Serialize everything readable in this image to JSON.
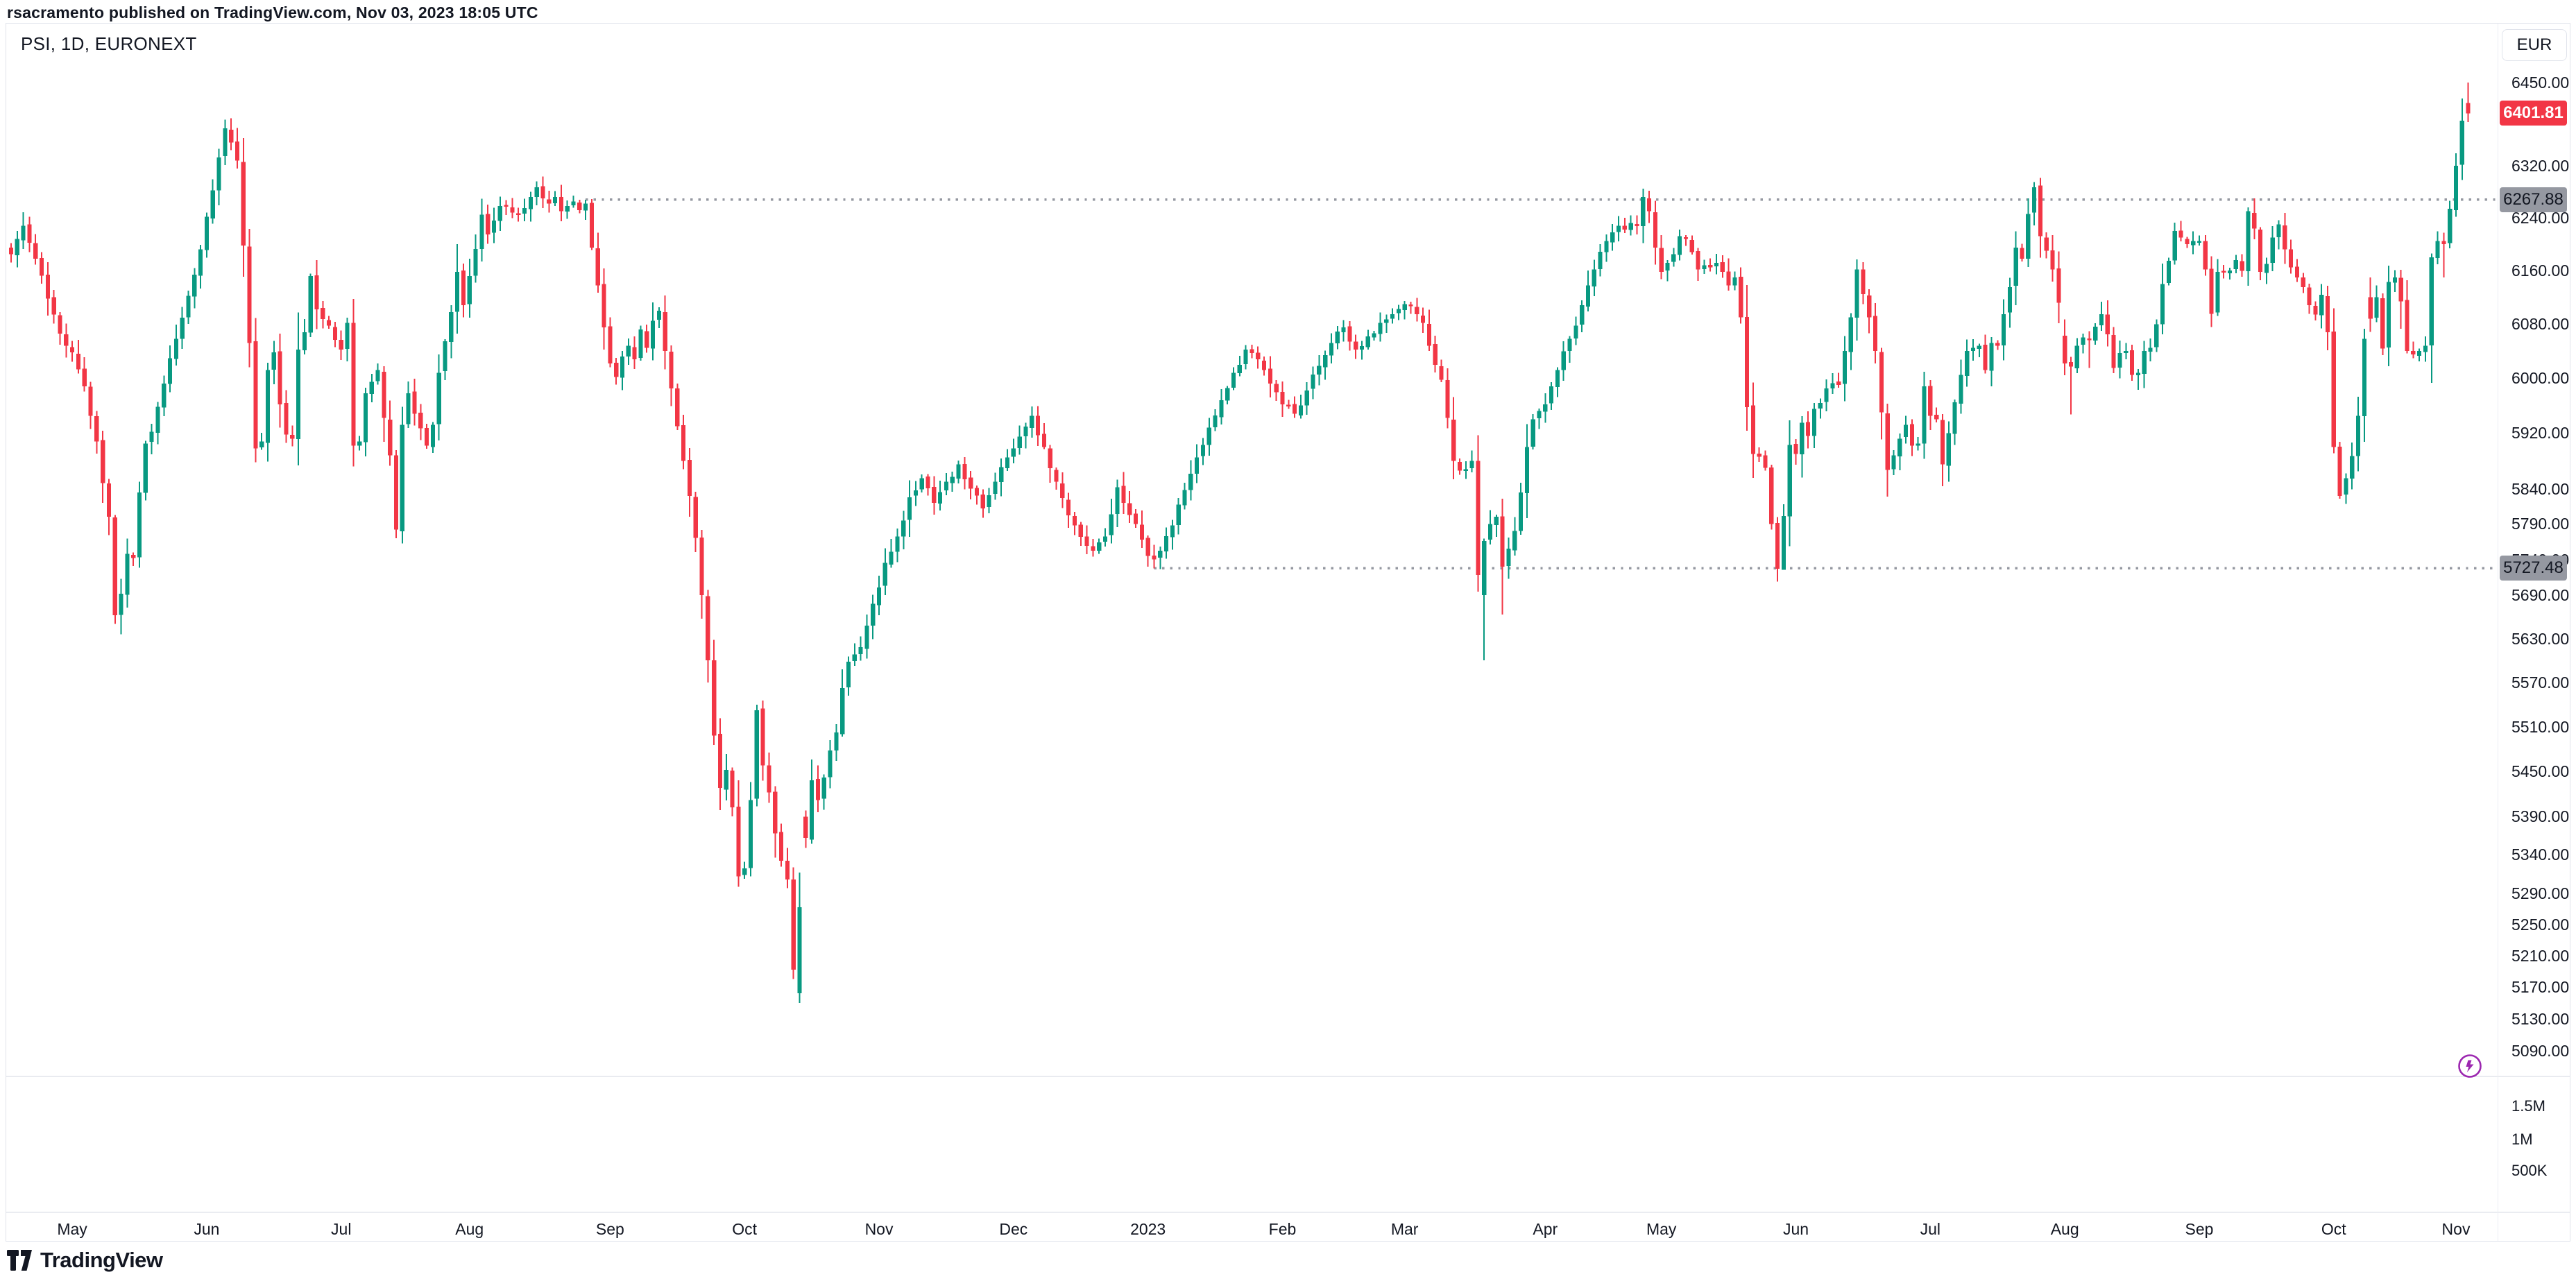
{
  "header": {
    "attribution": "rsacramento published on TradingView.com, Nov 03, 2023 18:05 UTC"
  },
  "legend": {
    "text": "PSI, 1D, EURONEXT"
  },
  "price_scale": {
    "currency_label": "EUR",
    "last_price_label": "6401.81",
    "ticks": [
      "6450.00",
      "6320.00",
      "6240.00",
      "6160.00",
      "6080.00",
      "6000.00",
      "5920.00",
      "5840.00",
      "5790.00",
      "5740.00",
      "5690.00",
      "5630.00",
      "5570.00",
      "5510.00",
      "5450.00",
      "5390.00",
      "5340.00",
      "5290.00",
      "5250.00",
      "5210.00",
      "5170.00",
      "5130.00",
      "5090.00"
    ],
    "tick_values": [
      6450,
      6320,
      6240,
      6160,
      6080,
      6000,
      5920,
      5840,
      5790,
      5740,
      5690,
      5630,
      5570,
      5510,
      5450,
      5390,
      5340,
      5290,
      5250,
      5210,
      5170,
      5130,
      5090
    ]
  },
  "volume_scale": {
    "ticks": [
      "1.5M",
      "1M",
      "500K"
    ]
  },
  "time_scale": {
    "labels": [
      {
        "t": "May",
        "i": 10
      },
      {
        "t": "Jun",
        "i": 32
      },
      {
        "t": "Jul",
        "i": 54
      },
      {
        "t": "Aug",
        "i": 75
      },
      {
        "t": "Sep",
        "i": 98
      },
      {
        "t": "Oct",
        "i": 120
      },
      {
        "t": "Nov",
        "i": 142
      },
      {
        "t": "Dec",
        "i": 164
      },
      {
        "t": "2023",
        "i": 186
      },
      {
        "t": "Feb",
        "i": 208
      },
      {
        "t": "Mar",
        "i": 228
      },
      {
        "t": "Apr",
        "i": 251
      },
      {
        "t": "May",
        "i": 270
      },
      {
        "t": "Jun",
        "i": 292
      },
      {
        "t": "Jul",
        "i": 314
      },
      {
        "t": "Aug",
        "i": 336
      },
      {
        "t": "Sep",
        "i": 358
      },
      {
        "t": "Oct",
        "i": 380
      },
      {
        "t": "Nov",
        "i": 400
      }
    ]
  },
  "footer": {
    "logo_text": "TradingView"
  },
  "colors": {
    "up": "#089981",
    "down": "#f23645",
    "level_gray": "#9598a1",
    "border": "#e0e3eb",
    "text": "#131722",
    "accent_purple": "#9c27b0",
    "last_price_badge": "#f23645"
  },
  "chart_data": {
    "type": "candlestick",
    "title": "PSI, 1D, EURONEXT",
    "symbol": "PSI",
    "interval": "1D",
    "exchange": "EURONEXT",
    "currency": "EUR",
    "y_scale": "log",
    "y_range_top": 6541.5,
    "y_range_bottom": 5059,
    "x_range": "Apr 2022 - Nov 03 2023 (daily candles)",
    "candle_count": 403,
    "last_price": 6401.81,
    "last_candle_direction": "down",
    "levels": [
      {
        "label": "6267.88",
        "price": 6267.88,
        "from_index": 94
      },
      {
        "label": "5727.48",
        "price": 5727.48,
        "from_index": 187
      }
    ],
    "volume_axis": [
      {
        "label": "1.5M",
        "y": 1595
      },
      {
        "label": "1M",
        "y": 1643
      },
      {
        "label": "500K",
        "y": 1688
      }
    ],
    "close_anchors": [
      [
        0,
        6185
      ],
      [
        2,
        6228
      ],
      [
        4,
        6178
      ],
      [
        6,
        6118
      ],
      [
        8,
        6066
      ],
      [
        10,
        6038
      ],
      [
        12,
        5988
      ],
      [
        14,
        5908
      ],
      [
        15,
        5848
      ],
      [
        16,
        5800
      ],
      [
        17,
        5662
      ],
      [
        18,
        5692
      ],
      [
        19,
        5748
      ],
      [
        20,
        5742
      ],
      [
        21,
        5835
      ],
      [
        22,
        5905
      ],
      [
        23,
        5922
      ],
      [
        25,
        5992
      ],
      [
        27,
        6058
      ],
      [
        29,
        6122
      ],
      [
        31,
        6192
      ],
      [
        33,
        6282
      ],
      [
        35,
        6378
      ],
      [
        36,
        6356
      ],
      [
        37,
        6328
      ],
      [
        38,
        6198
      ],
      [
        39,
        6052
      ],
      [
        40,
        5898
      ],
      [
        41,
        5908
      ],
      [
        42,
        6012
      ],
      [
        43,
        6038
      ],
      [
        44,
        5962
      ],
      [
        45,
        5918
      ],
      [
        46,
        5912
      ],
      [
        47,
        6042
      ],
      [
        48,
        6068
      ],
      [
        49,
        6152
      ],
      [
        50,
        6102
      ],
      [
        52,
        6078
      ],
      [
        54,
        6042
      ],
      [
        55,
        6082
      ],
      [
        56,
        5902
      ],
      [
        57,
        5908
      ],
      [
        58,
        5978
      ],
      [
        60,
        6012
      ],
      [
        61,
        5942
      ],
      [
        62,
        5888
      ],
      [
        63,
        5782
      ],
      [
        64,
        5932
      ],
      [
        65,
        5978
      ],
      [
        66,
        5948
      ],
      [
        68,
        5902
      ],
      [
        69,
        5932
      ],
      [
        70,
        6008
      ],
      [
        72,
        6098
      ],
      [
        73,
        6158
      ],
      [
        74,
        6108
      ],
      [
        75,
        6152
      ],
      [
        77,
        6245
      ],
      [
        78,
        6215
      ],
      [
        80,
        6258
      ],
      [
        82,
        6248
      ],
      [
        84,
        6255
      ],
      [
        86,
        6287
      ],
      [
        87,
        6270
      ],
      [
        88,
        6262
      ],
      [
        89,
        6272
      ],
      [
        90,
        6250
      ],
      [
        91,
        6258
      ],
      [
        92,
        6265
      ],
      [
        93,
        6252
      ],
      [
        94,
        6262
      ],
      [
        95,
        6195
      ],
      [
        96,
        6138
      ],
      [
        97,
        6075
      ],
      [
        98,
        6022
      ],
      [
        99,
        6002
      ],
      [
        100,
        6032
      ],
      [
        101,
        6048
      ],
      [
        102,
        6028
      ],
      [
        103,
        6072
      ],
      [
        104,
        6045
      ],
      [
        105,
        6085
      ],
      [
        106,
        6100
      ],
      [
        107,
        6040
      ],
      [
        108,
        5985
      ],
      [
        109,
        5930
      ],
      [
        110,
        5880
      ],
      [
        111,
        5830
      ],
      [
        112,
        5770
      ],
      [
        113,
        5690
      ],
      [
        114,
        5600
      ],
      [
        115,
        5498
      ],
      [
        116,
        5428
      ],
      [
        117,
        5452
      ],
      [
        118,
        5402
      ],
      [
        119,
        5312
      ],
      [
        120,
        5322
      ],
      [
        121,
        5412
      ],
      [
        122,
        5532
      ],
      [
        123,
        5458
      ],
      [
        124,
        5422
      ],
      [
        125,
        5368
      ],
      [
        126,
        5332
      ],
      [
        127,
        5308
      ],
      [
        128,
        5192
      ],
      [
        129,
        5272
      ],
      [
        130,
        5362
      ],
      [
        131,
        5438
      ],
      [
        132,
        5412
      ],
      [
        133,
        5442
      ],
      [
        134,
        5478
      ],
      [
        135,
        5502
      ],
      [
        136,
        5562
      ],
      [
        137,
        5598
      ],
      [
        138,
        5608
      ],
      [
        139,
        5618
      ],
      [
        140,
        5648
      ],
      [
        141,
        5678
      ],
      [
        143,
        5735
      ],
      [
        145,
        5772
      ],
      [
        147,
        5828
      ],
      [
        149,
        5855
      ],
      [
        151,
        5820
      ],
      [
        153,
        5850
      ],
      [
        155,
        5875
      ],
      [
        157,
        5840
      ],
      [
        159,
        5812
      ],
      [
        161,
        5850
      ],
      [
        163,
        5885
      ],
      [
        165,
        5915
      ],
      [
        167,
        5945
      ],
      [
        169,
        5900
      ],
      [
        171,
        5850
      ],
      [
        173,
        5802
      ],
      [
        175,
        5772
      ],
      [
        177,
        5752
      ],
      [
        179,
        5772
      ],
      [
        181,
        5842
      ],
      [
        182,
        5820
      ],
      [
        184,
        5790
      ],
      [
        185,
        5768
      ],
      [
        186,
        5745
      ],
      [
        187,
        5740
      ],
      [
        188,
        5752
      ],
      [
        190,
        5788
      ],
      [
        192,
        5838
      ],
      [
        194,
        5885
      ],
      [
        196,
        5928
      ],
      [
        198,
        5968
      ],
      [
        200,
        6008
      ],
      [
        202,
        6042
      ],
      [
        204,
        6028
      ],
      [
        206,
        5992
      ],
      [
        208,
        5962
      ],
      [
        210,
        5948
      ],
      [
        212,
        5982
      ],
      [
        214,
        6018
      ],
      [
        216,
        6052
      ],
      [
        218,
        6075
      ],
      [
        220,
        6042
      ],
      [
        222,
        6062
      ],
      [
        224,
        6082
      ],
      [
        226,
        6095
      ],
      [
        228,
        6110
      ],
      [
        229,
        6108
      ],
      [
        230,
        6095
      ],
      [
        231,
        6082
      ],
      [
        232,
        6048
      ],
      [
        233,
        6020
      ],
      [
        234,
        5998
      ],
      [
        235,
        5942
      ],
      [
        236,
        5880
      ],
      [
        237,
        5866
      ],
      [
        238,
        5868
      ],
      [
        239,
        5880
      ],
      [
        240,
        5718
      ],
      [
        241,
        5766
      ],
      [
        242,
        5790
      ],
      [
        243,
        5800
      ],
      [
        244,
        5730
      ],
      [
        245,
        5755
      ],
      [
        246,
        5780
      ],
      [
        247,
        5835
      ],
      [
        248,
        5900
      ],
      [
        249,
        5940
      ],
      [
        250,
        5952
      ],
      [
        251,
        5962
      ],
      [
        253,
        6012
      ],
      [
        255,
        6058
      ],
      [
        257,
        6108
      ],
      [
        259,
        6162
      ],
      [
        261,
        6205
      ],
      [
        262,
        6218
      ],
      [
        263,
        6228
      ],
      [
        264,
        6222
      ],
      [
        265,
        6232
      ],
      [
        266,
        6228
      ],
      [
        267,
        6272
      ],
      [
        268,
        6250
      ],
      [
        269,
        6195
      ],
      [
        270,
        6158
      ],
      [
        271,
        6172
      ],
      [
        272,
        6185
      ],
      [
        273,
        6212
      ],
      [
        274,
        6208
      ],
      [
        275,
        6188
      ],
      [
        276,
        6162
      ],
      [
        277,
        6168
      ],
      [
        278,
        6165
      ],
      [
        279,
        6172
      ],
      [
        280,
        6158
      ],
      [
        281,
        6138
      ],
      [
        282,
        6150
      ],
      [
        283,
        6090
      ],
      [
        284,
        5958
      ],
      [
        285,
        5890
      ],
      [
        286,
        5886
      ],
      [
        287,
        5870
      ],
      [
        288,
        5790
      ],
      [
        289,
        5727
      ],
      [
        290,
        5801
      ],
      [
        291,
        5903
      ],
      [
        292,
        5890
      ],
      [
        293,
        5935
      ],
      [
        294,
        5916
      ],
      [
        295,
        5955
      ],
      [
        296,
        5964
      ],
      [
        297,
        5985
      ],
      [
        298,
        5993
      ],
      [
        299,
        5990
      ],
      [
        300,
        6040
      ],
      [
        301,
        6090
      ],
      [
        302,
        6162
      ],
      [
        303,
        6125
      ],
      [
        304,
        6090
      ],
      [
        305,
        6040
      ],
      [
        306,
        5950
      ],
      [
        307,
        5867
      ],
      [
        308,
        5888
      ],
      [
        309,
        5912
      ],
      [
        310,
        5932
      ],
      [
        311,
        5902
      ],
      [
        312,
        5905
      ],
      [
        313,
        5988
      ],
      [
        314,
        5945
      ],
      [
        315,
        5940
      ],
      [
        316,
        5875
      ],
      [
        317,
        5920
      ],
      [
        318,
        5965
      ],
      [
        319,
        6005
      ],
      [
        320,
        6040
      ],
      [
        321,
        6045
      ],
      [
        322,
        6048
      ],
      [
        323,
        6012
      ],
      [
        324,
        6052
      ],
      [
        325,
        6048
      ],
      [
        326,
        6095
      ],
      [
        327,
        6135
      ],
      [
        328,
        6195
      ],
      [
        329,
        6178
      ],
      [
        330,
        6246
      ],
      [
        331,
        6287
      ],
      [
        332,
        6212
      ],
      [
        333,
        6190
      ],
      [
        334,
        6162
      ],
      [
        335,
        6112
      ],
      [
        336,
        6022
      ],
      [
        337,
        6017
      ],
      [
        338,
        6048
      ],
      [
        339,
        6060
      ],
      [
        340,
        6058
      ],
      [
        341,
        6076
      ],
      [
        342,
        6095
      ],
      [
        343,
        6065
      ],
      [
        344,
        6015
      ],
      [
        345,
        6037
      ],
      [
        346,
        6040
      ],
      [
        347,
        6005
      ],
      [
        348,
        6008
      ],
      [
        349,
        6040
      ],
      [
        350,
        6045
      ],
      [
        351,
        6080
      ],
      [
        352,
        6140
      ],
      [
        353,
        6175
      ],
      [
        354,
        6220
      ],
      [
        355,
        6210
      ],
      [
        356,
        6200
      ],
      [
        357,
        6205
      ],
      [
        358,
        6205
      ],
      [
        359,
        6162
      ],
      [
        360,
        6095
      ],
      [
        361,
        6158
      ],
      [
        362,
        6158
      ],
      [
        363,
        6160
      ],
      [
        364,
        6176
      ],
      [
        365,
        6160
      ],
      [
        366,
        6250
      ],
      [
        367,
        6224
      ],
      [
        368,
        6158
      ],
      [
        369,
        6170
      ],
      [
        370,
        6210
      ],
      [
        371,
        6230
      ],
      [
        372,
        6192
      ],
      [
        373,
        6165
      ],
      [
        374,
        6150
      ],
      [
        375,
        6135
      ],
      [
        376,
        6108
      ],
      [
        377,
        6094
      ],
      [
        378,
        6124
      ],
      [
        379,
        6068
      ],
      [
        380,
        5900
      ],
      [
        381,
        5830
      ],
      [
        382,
        5855
      ],
      [
        383,
        5887
      ],
      [
        384,
        5945
      ],
      [
        385,
        6058
      ],
      [
        386,
        6088
      ],
      [
        387,
        6120
      ],
      [
        388,
        6044
      ],
      [
        389,
        6143
      ],
      [
        390,
        6150
      ],
      [
        391,
        6114
      ],
      [
        392,
        6040
      ],
      [
        393,
        6035
      ],
      [
        394,
        6040
      ],
      [
        395,
        6048
      ],
      [
        396,
        6180
      ],
      [
        397,
        6205
      ],
      [
        398,
        6200
      ],
      [
        399,
        6254
      ],
      [
        400,
        6320
      ],
      [
        401,
        6390
      ],
      [
        402,
        6401.81
      ]
    ],
    "low_overrides": {
      "17": 5650,
      "18": 5636,
      "40": 5878,
      "56": 5872,
      "63": 5770,
      "110": 5868,
      "128": 5180,
      "129": 5150,
      "187": 5727.48,
      "240": 5695,
      "241": 5600,
      "244": 5663,
      "289": 5709,
      "290": 5758,
      "293": 5856,
      "307": 5829,
      "337": 5947,
      "340": 6015,
      "348": 5983,
      "381": 5826,
      "388": 6034,
      "391": 6073,
      "398": 6150,
      "402": 6388
    },
    "high_overrides": {
      "35": 6392,
      "73": 6200,
      "86": 6296,
      "94": 6268,
      "106": 6105,
      "267": 6285,
      "302": 6177,
      "331": 6295,
      "366": 6256,
      "367": 6270,
      "378": 6140,
      "386": 6150,
      "387": 6138,
      "401": 6425,
      "402": 6450
    },
    "open_overrides": {
      "115": 5600,
      "129": 5162,
      "130": 5390,
      "240": 5880,
      "241": 5690,
      "336": 6063,
      "386": 6120,
      "402": 6418
    }
  }
}
